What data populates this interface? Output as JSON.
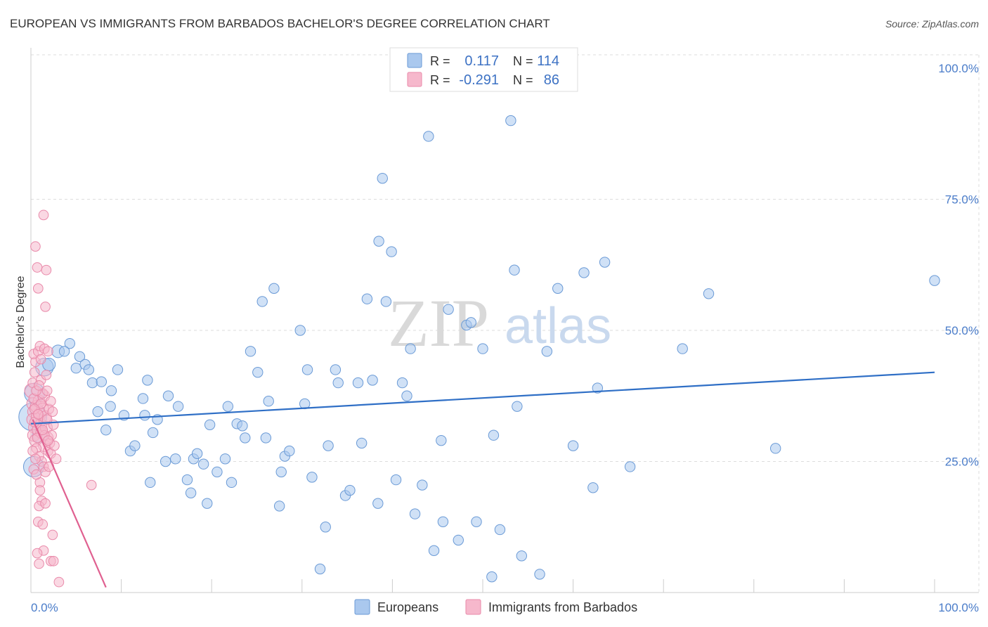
{
  "title": "EUROPEAN VS IMMIGRANTS FROM BARBADOS BACHELOR'S DEGREE CORRELATION CHART",
  "source": "Source: ZipAtlas.com",
  "watermark": {
    "zip": "ZIP",
    "atlas": "atlas"
  },
  "colors": {
    "blue_fill": "#aac8ee",
    "blue_stroke": "#6a9ad6",
    "blue_line": "#2f6fc6",
    "pink_fill": "#f6b8cc",
    "pink_stroke": "#e98aaa",
    "pink_line": "#e06090",
    "grid": "#dddddd",
    "tick_text": "#4a7cc9"
  },
  "legend": {
    "rows": [
      {
        "r_label": "R =",
        "r_value": "0.117",
        "n_label": "N =",
        "n_value": "114",
        "swatch": "blue"
      },
      {
        "r_label": "R =",
        "r_value": "-0.291",
        "n_label": "N =",
        "n_value": "86",
        "swatch": "pink"
      }
    ]
  },
  "chart_data": {
    "type": "scatter",
    "title": "EUROPEAN VS IMMIGRANTS FROM BARBADOS BACHELOR'S DEGREE CORRELATION CHART",
    "xlabel": "",
    "ylabel": "Bachelor's Degree",
    "xlim": [
      0,
      100
    ],
    "ylim": [
      0,
      100
    ],
    "x_tick_labels": [
      {
        "value": 0,
        "label": "0.0%"
      },
      {
        "value": 100,
        "label": "100.0%"
      }
    ],
    "y_tick_labels": [
      {
        "value": 25,
        "label": "25.0%"
      },
      {
        "value": 50,
        "label": "50.0%"
      },
      {
        "value": 75,
        "label": "75.0%"
      },
      {
        "value": 100,
        "label": "100.0%"
      }
    ],
    "grid": true,
    "legend_position": "top-center",
    "series": [
      {
        "name": "Europeans",
        "color": "blue",
        "r": 0.117,
        "n": 114,
        "trend": {
          "x": [
            0,
            100
          ],
          "y": [
            32.2,
            42.0
          ]
        },
        "points": [
          [
            0.2,
            33.5,
            2.2
          ],
          [
            0.4,
            38.0,
            1.6
          ],
          [
            0.3,
            24.0,
            1.6
          ],
          [
            1.0,
            30.0,
            1.2
          ],
          [
            1.5,
            43.0,
            1.4
          ],
          [
            2.0,
            43.5,
            1.0
          ],
          [
            3.0,
            46.0,
            1.0
          ],
          [
            4.3,
            47.5,
            0.8
          ],
          [
            3.7,
            46.0,
            0.8
          ],
          [
            5.4,
            45.0,
            0.8
          ],
          [
            5.0,
            42.8,
            0.8
          ],
          [
            6.0,
            43.5,
            0.8
          ],
          [
            6.4,
            42.5,
            0.8
          ],
          [
            6.8,
            40.0,
            0.8
          ],
          [
            7.8,
            40.2,
            0.8
          ],
          [
            8.9,
            38.5,
            0.8
          ],
          [
            9.6,
            42.5,
            0.8
          ],
          [
            7.4,
            34.5,
            0.8
          ],
          [
            8.8,
            35.5,
            0.8
          ],
          [
            8.3,
            31.0,
            0.8
          ],
          [
            10.3,
            33.8,
            0.8
          ],
          [
            11.0,
            27.0,
            0.8
          ],
          [
            11.5,
            28.0,
            0.8
          ],
          [
            12.4,
            37.0,
            0.8
          ],
          [
            12.6,
            33.8,
            0.8
          ],
          [
            12.9,
            40.5,
            0.8
          ],
          [
            13.5,
            30.5,
            0.8
          ],
          [
            14.0,
            33.0,
            0.8
          ],
          [
            15.2,
            37.5,
            0.8
          ],
          [
            16.3,
            35.5,
            0.8
          ],
          [
            13.2,
            21.0,
            0.8
          ],
          [
            14.9,
            25.0,
            0.8
          ],
          [
            16.0,
            25.5,
            0.8
          ],
          [
            17.3,
            21.5,
            0.8
          ],
          [
            17.7,
            19.0,
            0.8
          ],
          [
            18.0,
            25.5,
            0.8
          ],
          [
            18.4,
            26.5,
            0.8
          ],
          [
            19.1,
            24.5,
            0.8
          ],
          [
            19.5,
            17.0,
            0.8
          ],
          [
            19.8,
            32.0,
            0.8
          ],
          [
            20.6,
            23.0,
            0.8
          ],
          [
            21.5,
            25.5,
            0.8
          ],
          [
            21.8,
            35.5,
            0.8
          ],
          [
            22.2,
            21.0,
            0.8
          ],
          [
            22.8,
            32.2,
            0.8
          ],
          [
            23.4,
            31.8,
            0.8
          ],
          [
            23.7,
            29.5,
            0.8
          ],
          [
            24.3,
            46.0,
            0.8
          ],
          [
            25.1,
            42.0,
            0.8
          ],
          [
            25.6,
            55.5,
            0.8
          ],
          [
            26.0,
            29.5,
            0.8
          ],
          [
            26.3,
            36.5,
            0.8
          ],
          [
            26.9,
            58.0,
            0.8
          ],
          [
            27.5,
            16.5,
            0.8
          ],
          [
            27.7,
            23.0,
            0.8
          ],
          [
            28.1,
            26.0,
            0.8
          ],
          [
            28.6,
            27.0,
            0.8
          ],
          [
            29.8,
            50.0,
            0.8
          ],
          [
            30.3,
            36.0,
            0.8
          ],
          [
            30.6,
            42.5,
            0.8
          ],
          [
            31.1,
            22.0,
            0.8
          ],
          [
            32.0,
            4.5,
            0.8
          ],
          [
            32.6,
            12.5,
            0.8
          ],
          [
            32.9,
            28.0,
            0.8
          ],
          [
            33.7,
            42.5,
            0.8
          ],
          [
            34.0,
            40.0,
            0.8
          ],
          [
            34.8,
            18.5,
            0.8
          ],
          [
            35.3,
            19.5,
            0.8
          ],
          [
            36.2,
            40.0,
            0.8
          ],
          [
            36.6,
            28.5,
            0.8
          ],
          [
            37.2,
            56.0,
            0.8
          ],
          [
            37.8,
            40.5,
            0.8
          ],
          [
            38.4,
            17.0,
            0.8
          ],
          [
            38.5,
            67.0,
            0.8
          ],
          [
            38.9,
            79.0,
            0.8
          ],
          [
            39.3,
            55.5,
            0.8
          ],
          [
            39.9,
            65.0,
            0.8
          ],
          [
            40.4,
            21.5,
            0.8
          ],
          [
            41.1,
            40.0,
            0.8
          ],
          [
            41.6,
            37.5,
            0.8
          ],
          [
            42.0,
            46.5,
            0.8
          ],
          [
            42.5,
            15.0,
            0.8
          ],
          [
            43.3,
            20.5,
            0.8
          ],
          [
            44.0,
            87.0,
            0.8
          ],
          [
            44.6,
            8.0,
            0.8
          ],
          [
            45.4,
            29.0,
            0.8
          ],
          [
            45.6,
            13.5,
            0.8
          ],
          [
            46.2,
            54.0,
            0.8
          ],
          [
            47.3,
            10.0,
            0.8
          ],
          [
            48.2,
            51.0,
            0.8
          ],
          [
            48.7,
            51.5,
            0.8
          ],
          [
            49.3,
            13.5,
            0.8
          ],
          [
            50.0,
            46.5,
            0.8
          ],
          [
            51.0,
            3.0,
            0.8
          ],
          [
            51.2,
            30.0,
            0.8
          ],
          [
            51.9,
            12.0,
            0.8
          ],
          [
            53.1,
            90.0,
            0.8
          ],
          [
            53.5,
            61.5,
            0.8
          ],
          [
            53.8,
            35.5,
            0.8
          ],
          [
            54.3,
            7.0,
            0.8
          ],
          [
            56.3,
            3.5,
            0.8
          ],
          [
            57.1,
            46.0,
            0.8
          ],
          [
            58.3,
            58.0,
            0.8
          ],
          [
            60.0,
            28.0,
            0.8
          ],
          [
            61.2,
            61.0,
            0.8
          ],
          [
            62.2,
            20.0,
            0.8
          ],
          [
            62.7,
            39.0,
            0.8
          ],
          [
            63.5,
            63.0,
            0.8
          ],
          [
            66.3,
            24.0,
            0.8
          ],
          [
            72.1,
            46.5,
            0.8
          ],
          [
            75.0,
            57.0,
            0.8
          ],
          [
            82.4,
            27.5,
            0.8
          ],
          [
            100.0,
            59.5,
            0.8
          ]
        ]
      },
      {
        "name": "Immigrants from Barbados",
        "color": "pink",
        "r": -0.291,
        "n": 86,
        "trend": {
          "x": [
            0.2,
            8.3
          ],
          "y": [
            33.0,
            1.0
          ]
        },
        "points": [
          [
            0.1,
            38.5,
            1.2
          ],
          [
            0.2,
            36.0,
            1.0
          ],
          [
            0.3,
            34.5,
            1.0
          ],
          [
            0.2,
            33.0,
            1.0
          ],
          [
            0.4,
            31.5,
            1.0
          ],
          [
            0.3,
            30.0,
            1.0
          ],
          [
            0.5,
            29.0,
            1.0
          ],
          [
            0.6,
            35.5,
            1.0
          ],
          [
            0.7,
            33.5,
            1.0
          ],
          [
            0.8,
            31.0,
            1.0
          ],
          [
            0.9,
            36.5,
            1.0
          ],
          [
            1.0,
            34.0,
            1.0
          ],
          [
            1.1,
            32.0,
            1.0
          ],
          [
            1.2,
            30.5,
            1.0
          ],
          [
            1.3,
            35.0,
            1.0
          ],
          [
            1.4,
            37.5,
            1.0
          ],
          [
            1.5,
            28.0,
            1.0
          ],
          [
            1.6,
            33.5,
            1.0
          ],
          [
            1.7,
            31.5,
            1.0
          ],
          [
            1.8,
            29.5,
            1.0
          ],
          [
            0.2,
            40.0,
            0.8
          ],
          [
            0.4,
            42.0,
            0.8
          ],
          [
            0.5,
            44.0,
            0.8
          ],
          [
            0.3,
            45.5,
            0.8
          ],
          [
            0.8,
            46.0,
            0.8
          ],
          [
            1.0,
            47.0,
            0.8
          ],
          [
            1.5,
            46.5,
            0.8
          ],
          [
            1.9,
            46.0,
            0.8
          ],
          [
            1.1,
            40.5,
            0.8
          ],
          [
            1.3,
            38.0,
            0.8
          ],
          [
            0.6,
            27.5,
            0.8
          ],
          [
            0.9,
            26.0,
            0.8
          ],
          [
            1.2,
            25.0,
            0.8
          ],
          [
            1.4,
            24.0,
            0.8
          ],
          [
            1.6,
            23.0,
            0.8
          ],
          [
            1.9,
            27.0,
            0.8
          ],
          [
            2.1,
            28.5,
            0.8
          ],
          [
            2.3,
            30.0,
            0.8
          ],
          [
            2.5,
            32.0,
            0.8
          ],
          [
            2.2,
            26.5,
            0.8
          ],
          [
            2.8,
            25.5,
            0.8
          ],
          [
            2.0,
            24.0,
            0.8
          ],
          [
            1.0,
            21.0,
            0.8
          ],
          [
            1.2,
            17.5,
            0.8
          ],
          [
            0.9,
            16.5,
            0.8
          ],
          [
            1.6,
            17.0,
            0.8
          ],
          [
            0.8,
            13.5,
            0.8
          ],
          [
            1.3,
            13.0,
            0.8
          ],
          [
            2.4,
            11.0,
            0.8
          ],
          [
            1.4,
            8.0,
            0.8
          ],
          [
            0.7,
            7.5,
            0.8
          ],
          [
            0.9,
            5.5,
            0.8
          ],
          [
            2.2,
            6.0,
            0.8
          ],
          [
            2.5,
            6.0,
            0.8
          ],
          [
            3.1,
            2.0,
            0.8
          ],
          [
            0.5,
            66.0,
            0.8
          ],
          [
            1.4,
            72.0,
            0.8
          ],
          [
            0.7,
            62.0,
            0.8
          ],
          [
            1.7,
            61.5,
            0.8
          ],
          [
            0.8,
            58.0,
            0.8
          ],
          [
            1.6,
            54.5,
            0.8
          ],
          [
            6.7,
            20.5,
            0.8
          ],
          [
            0.3,
            37.0,
            0.8
          ],
          [
            0.6,
            38.5,
            0.8
          ],
          [
            0.9,
            39.5,
            0.8
          ],
          [
            1.1,
            36.0,
            0.8
          ],
          [
            0.4,
            32.5,
            0.8
          ],
          [
            0.7,
            29.5,
            0.8
          ],
          [
            1.5,
            30.0,
            0.8
          ],
          [
            1.8,
            33.0,
            0.8
          ],
          [
            2.0,
            35.0,
            0.8
          ],
          [
            2.6,
            28.0,
            0.8
          ],
          [
            0.2,
            27.0,
            0.8
          ],
          [
            0.5,
            25.5,
            0.8
          ],
          [
            0.3,
            23.5,
            0.8
          ],
          [
            0.6,
            22.5,
            0.8
          ],
          [
            1.0,
            19.5,
            0.8
          ],
          [
            1.1,
            44.5,
            0.8
          ],
          [
            1.7,
            41.5,
            0.8
          ],
          [
            1.8,
            38.5,
            0.8
          ],
          [
            2.2,
            36.5,
            0.8
          ],
          [
            2.4,
            34.5,
            0.8
          ],
          [
            0.4,
            35.0,
            0.8
          ],
          [
            0.8,
            34.0,
            0.8
          ],
          [
            1.3,
            31.0,
            0.8
          ],
          [
            1.9,
            29.0,
            0.8
          ]
        ]
      }
    ]
  }
}
